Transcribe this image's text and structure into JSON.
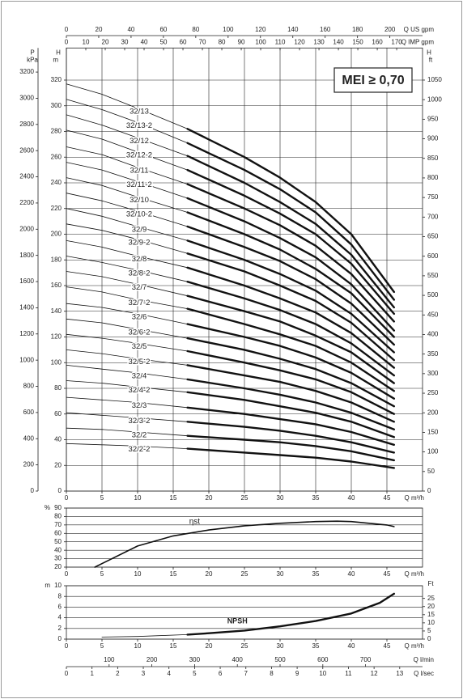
{
  "chart_data": [
    {
      "type": "line",
      "x_label": "Q m³/h",
      "y_label": "H",
      "y_unit": "m",
      "x": [
        0,
        5,
        10,
        17,
        25,
        30,
        35,
        40,
        46
      ],
      "xlim": [
        0,
        50
      ],
      "xticks": [
        0,
        5,
        10,
        15,
        20,
        25,
        30,
        35,
        40,
        45
      ],
      "ylim": [
        0,
        345
      ],
      "yticks": [
        0,
        20,
        40,
        60,
        80,
        100,
        120,
        140,
        160,
        180,
        200,
        220,
        240,
        260,
        280,
        300,
        320
      ],
      "grid": true,
      "color": "#111111",
      "thick_from_x": 17,
      "annotation": "MEI ≥ 0,70",
      "left_axis": {
        "label": "P",
        "unit": "kPa",
        "lim": [
          0,
          3384
        ],
        "ticks": [
          0,
          200,
          400,
          600,
          800,
          1000,
          1200,
          1400,
          1600,
          1800,
          2000,
          2200,
          2400,
          2600,
          2800,
          3000,
          3200
        ]
      },
      "right_axis": {
        "label": "H",
        "unit": "ft",
        "lim": [
          0,
          1132
        ],
        "ticks": [
          0,
          50,
          100,
          150,
          200,
          250,
          300,
          350,
          400,
          450,
          500,
          550,
          600,
          650,
          700,
          750,
          800,
          850,
          900,
          950,
          1000,
          1050
        ]
      },
      "top_axes": [
        {
          "label": "Q US gpm",
          "lim": [
            0,
            220.2
          ],
          "ticks": [
            0,
            20,
            40,
            60,
            80,
            100,
            120,
            140,
            160,
            180,
            200
          ]
        },
        {
          "label": "Q IMP gpm",
          "lim": [
            0,
            183.3
          ],
          "ticks": [
            0,
            10,
            20,
            30,
            40,
            50,
            60,
            70,
            80,
            90,
            100,
            110,
            120,
            130,
            140,
            150,
            160,
            170
          ]
        }
      ],
      "series": [
        {
          "name": "32/13",
          "values": [
            317,
            309,
            298,
            282,
            260,
            244,
            225,
            200,
            155
          ]
        },
        {
          "name": "32/13-2",
          "values": [
            305,
            297,
            287,
            271,
            250,
            235,
            217,
            192,
            149
          ]
        },
        {
          "name": "32/12",
          "values": [
            293,
            285,
            275,
            261,
            240,
            225,
            208,
            184,
            143
          ]
        },
        {
          "name": "32/12-2",
          "values": [
            281,
            274,
            264,
            250,
            230,
            216,
            200,
            177,
            138
          ]
        },
        {
          "name": "32/11",
          "values": [
            268,
            262,
            252,
            239,
            220,
            207,
            191,
            169,
            132
          ]
        },
        {
          "name": "32/11-2",
          "values": [
            256,
            250,
            241,
            228,
            210,
            197,
            182,
            161,
            125
          ]
        },
        {
          "name": "32/10",
          "values": [
            244,
            238,
            229,
            217,
            200,
            188,
            173,
            154,
            120
          ]
        },
        {
          "name": "32/10-2",
          "values": [
            232,
            226,
            218,
            206,
            190,
            179,
            165,
            146,
            114
          ]
        },
        {
          "name": "32/9",
          "values": [
            220,
            214,
            206,
            195,
            180,
            169,
            156,
            138,
            108
          ]
        },
        {
          "name": "32/9-2",
          "values": [
            208,
            203,
            196,
            185,
            171,
            160,
            148,
            131,
            102
          ]
        },
        {
          "name": "32/8",
          "values": [
            195,
            190,
            183,
            174,
            160,
            150,
            139,
            123,
            96
          ]
        },
        {
          "name": "32/8-2",
          "values": [
            183,
            178,
            172,
            163,
            150,
            141,
            130,
            115,
            90
          ]
        },
        {
          "name": "32/7",
          "values": [
            171,
            167,
            161,
            152,
            140,
            132,
            121,
            108,
            84
          ]
        },
        {
          "name": "32/7-2",
          "values": [
            159,
            155,
            149,
            142,
            130,
            122,
            113,
            100,
            78
          ]
        },
        {
          "name": "32/6",
          "values": [
            146,
            143,
            138,
            130,
            120,
            113,
            104,
            92,
            72
          ]
        },
        {
          "name": "32/6-2",
          "values": [
            134,
            131,
            126,
            119,
            110,
            103,
            95,
            84,
            66
          ]
        },
        {
          "name": "32/5",
          "values": [
            122,
            119,
            115,
            109,
            100,
            94,
            87,
            77,
            60
          ]
        },
        {
          "name": "32/5-2",
          "values": [
            110,
            107,
            103,
            98,
            90,
            85,
            78,
            69,
            54
          ]
        },
        {
          "name": "32/4",
          "values": [
            98,
            95,
            92,
            87,
            80,
            75,
            69,
            61,
            48
          ]
        },
        {
          "name": "32/4-2",
          "values": [
            86,
            84,
            81,
            77,
            71,
            66,
            61,
            54,
            42
          ]
        },
        {
          "name": "32/3",
          "values": [
            73,
            71,
            69,
            65,
            60,
            56,
            52,
            46,
            36
          ]
        },
        {
          "name": "32/3-2",
          "values": [
            61,
            59,
            57,
            54,
            50,
            47,
            43,
            38,
            30
          ]
        },
        {
          "name": "32/2",
          "values": [
            49,
            48,
            46,
            43,
            40,
            38,
            35,
            31,
            24
          ]
        },
        {
          "name": "32/2-2",
          "values": [
            37,
            36,
            35,
            33,
            30,
            28,
            26,
            23,
            18
          ]
        }
      ]
    },
    {
      "type": "line",
      "x_label": "Q m³/h",
      "y_unit": "%",
      "x": [
        4,
        10,
        15,
        20,
        25,
        30,
        35,
        38,
        40,
        45,
        46
      ],
      "xlim": [
        0,
        50
      ],
      "xticks": [
        0,
        5,
        10,
        15,
        20,
        25,
        30,
        35,
        40,
        45
      ],
      "ylim": [
        20,
        90
      ],
      "yticks": [
        20,
        30,
        40,
        50,
        60,
        70,
        80,
        90
      ],
      "grid": "y",
      "color": "#111111",
      "annotation": "ηst",
      "values": [
        20,
        45,
        57,
        64,
        69,
        72,
        74,
        74.5,
        74,
        70,
        68
      ]
    },
    {
      "type": "line",
      "x_label": "Q m³/h",
      "y_unit": "m",
      "x": [
        5,
        10,
        17,
        20,
        25,
        30,
        35,
        40,
        44,
        46
      ],
      "xlim": [
        0,
        50
      ],
      "xticks": [
        0,
        5,
        10,
        15,
        20,
        25,
        30,
        35,
        40,
        45
      ],
      "ylim": [
        0,
        10
      ],
      "yticks": [
        0,
        2,
        4,
        6,
        8,
        10
      ],
      "grid": "y",
      "color": "#111111",
      "thick_from_x": 17,
      "annotation": "NPSH",
      "right_axis": {
        "unit": "Ft",
        "lim": [
          0,
          32.8
        ],
        "ticks": [
          0,
          5,
          10,
          15,
          20,
          25
        ]
      },
      "bottom_axes": [
        {
          "label": "Q l/min",
          "lim": [
            0,
            833.3
          ],
          "ticks": [
            100,
            200,
            300,
            400,
            500,
            600,
            700
          ]
        },
        {
          "label": "Q l/sec",
          "lim": [
            0,
            13.89
          ],
          "ticks": [
            0,
            1,
            2,
            3,
            4,
            5,
            6,
            7,
            8,
            9,
            10,
            11,
            12,
            13
          ]
        }
      ],
      "values": [
        0.4,
        0.5,
        0.85,
        1.1,
        1.6,
        2.4,
        3.4,
        4.8,
        6.8,
        8.5
      ]
    }
  ]
}
